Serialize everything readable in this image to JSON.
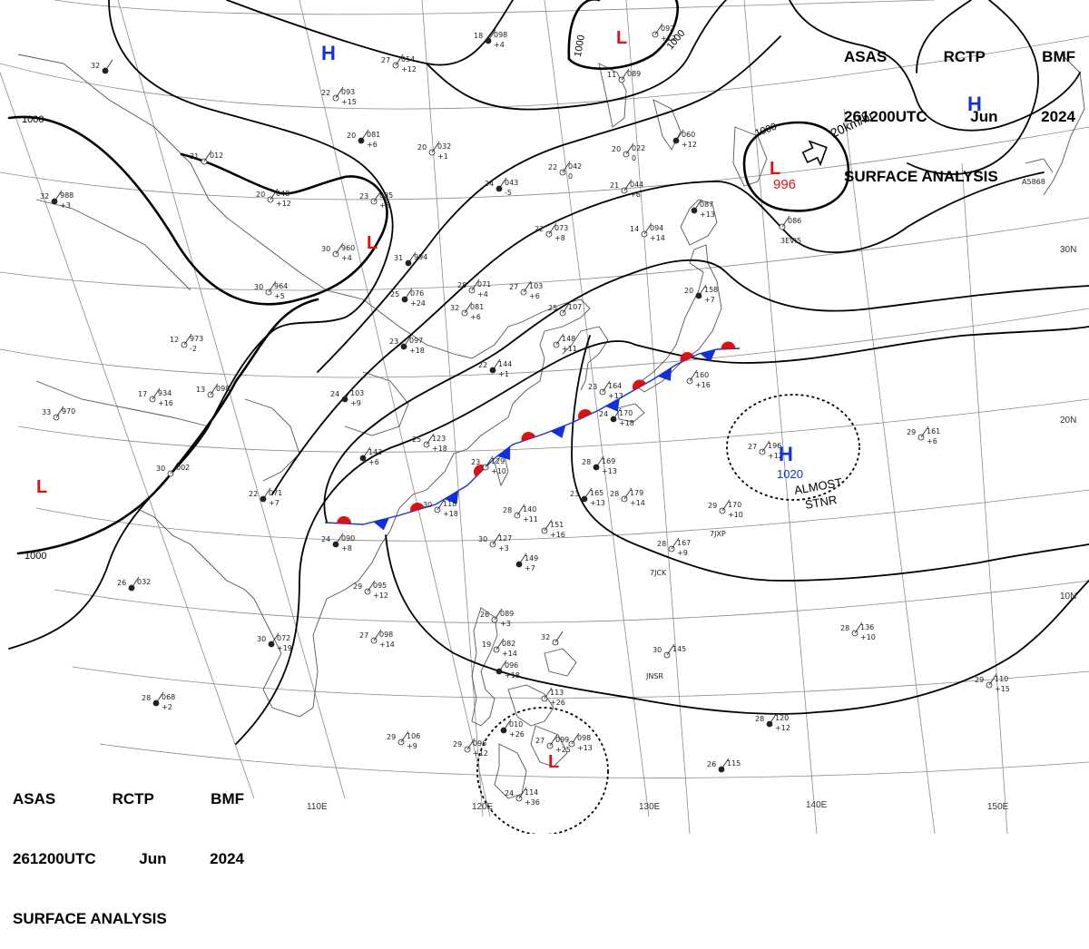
{
  "header": {
    "line1": [
      "ASAS",
      "RCTP",
      "BMF"
    ],
    "line2": [
      "261200UTC",
      "Jun",
      "2024"
    ],
    "line3": "SURFACE ANALYSIS"
  },
  "colors": {
    "high": "#1030e0",
    "low": "#e01010",
    "front_warm": "#e01010",
    "front_cold": "#1030e0",
    "isobar": "#000000",
    "land": "#555555"
  },
  "pressure_centers": [
    {
      "type": "H",
      "value": ""
    },
    {
      "type": "H",
      "value": ""
    },
    {
      "type": "L",
      "value": ""
    },
    {
      "type": "L",
      "value": "996"
    },
    {
      "type": "L",
      "value": ""
    },
    {
      "type": "L",
      "value": ""
    },
    {
      "type": "H",
      "value": "1020"
    },
    {
      "type": "L",
      "value": ""
    }
  ],
  "isobar_labels": [
    "1000",
    "1000",
    "1000",
    "1000",
    "1000"
  ],
  "motion": {
    "speed": "20km/hr",
    "icon": "arrow-right-outline-icon"
  },
  "stationary_note": [
    "ALMOST",
    "STNR"
  ],
  "lon_labels": [
    "110E",
    "120E",
    "130E",
    "140E",
    "150E"
  ],
  "lat_labels": [
    "30N",
    "20N",
    "10N"
  ],
  "ships": [
    "3EVI5",
    "7JXP",
    "7JCK",
    "JNSR",
    "A5868"
  ],
  "station_plots": [
    {
      "t": "18",
      "p": "098",
      "d": "+4"
    },
    {
      "t": "",
      "p": "092",
      "d": "+12"
    },
    {
      "t": "11",
      "p": "089",
      "d": ""
    },
    {
      "t": "32",
      "p": "",
      "d": ""
    },
    {
      "t": "27",
      "p": "054",
      "d": "+12"
    },
    {
      "t": "22",
      "p": "093",
      "d": "+15"
    },
    {
      "t": "20",
      "p": "081",
      "d": "+6"
    },
    {
      "t": "20",
      "p": "032",
      "d": "+1"
    },
    {
      "t": "31",
      "p": "012",
      "d": ""
    },
    {
      "t": "32",
      "p": "988",
      "d": "+3"
    },
    {
      "t": "20",
      "p": "048",
      "d": "+12"
    },
    {
      "t": "23",
      "p": "035",
      "d": "+3"
    },
    {
      "t": "24",
      "p": "043",
      "d": "-5"
    },
    {
      "t": "22",
      "p": "042",
      "d": "0"
    },
    {
      "t": "20",
      "p": "022",
      "d": "0"
    },
    {
      "t": "",
      "p": "060",
      "d": "+12"
    },
    {
      "t": "21",
      "p": "044",
      "d": "+6"
    },
    {
      "t": "30",
      "p": "960",
      "d": "+4"
    },
    {
      "t": "31",
      "p": "994",
      "d": ""
    },
    {
      "t": "22",
      "p": "073",
      "d": "+8"
    },
    {
      "t": "14",
      "p": "094",
      "d": "+14"
    },
    {
      "t": "",
      "p": "087",
      "d": "+13"
    },
    {
      "t": "",
      "p": "086",
      "d": ""
    },
    {
      "t": "30",
      "p": "964",
      "d": "+5"
    },
    {
      "t": "25",
      "p": "076",
      "d": "+24"
    },
    {
      "t": "28",
      "p": "071",
      "d": "+4"
    },
    {
      "t": "27",
      "p": "103",
      "d": "+6"
    },
    {
      "t": "20",
      "p": "158",
      "d": "+7"
    },
    {
      "t": "32",
      "p": "081",
      "d": "+6"
    },
    {
      "t": "25",
      "p": "107",
      "d": ""
    },
    {
      "t": "23",
      "p": "097",
      "d": "+18"
    },
    {
      "t": "12",
      "p": "973",
      "d": "-2"
    },
    {
      "t": "",
      "p": "148",
      "d": "+11"
    },
    {
      "t": "22",
      "p": "144",
      "d": "+1"
    },
    {
      "t": "17",
      "p": "934",
      "d": "+16"
    },
    {
      "t": "13",
      "p": "098",
      "d": ""
    },
    {
      "t": "24",
      "p": "103",
      "d": "+9"
    },
    {
      "t": "33",
      "p": "970",
      "d": ""
    },
    {
      "t": "23",
      "p": "164",
      "d": "+13"
    },
    {
      "t": "24",
      "p": "170",
      "d": "+18"
    },
    {
      "t": "",
      "p": "160",
      "d": "+16"
    },
    {
      "t": "25",
      "p": "123",
      "d": "+18"
    },
    {
      "t": "",
      "p": "143",
      "d": "+6"
    },
    {
      "t": "23",
      "p": "129",
      "d": "+10"
    },
    {
      "t": "30",
      "p": "002",
      "d": ""
    },
    {
      "t": "28",
      "p": "169",
      "d": "+13"
    },
    {
      "t": "27",
      "p": "196",
      "d": "+12"
    },
    {
      "t": "29",
      "p": "161",
      "d": "+6"
    },
    {
      "t": "22",
      "p": "071",
      "d": "+7"
    },
    {
      "t": "30",
      "p": "118",
      "d": "+18"
    },
    {
      "t": "28",
      "p": "140",
      "d": "+11"
    },
    {
      "t": "23",
      "p": "165",
      "d": "+13"
    },
    {
      "t": "28",
      "p": "179",
      "d": "+14"
    },
    {
      "t": "29",
      "p": "170",
      "d": "+10"
    },
    {
      "t": "24",
      "p": "090",
      "d": "+8"
    },
    {
      "t": "30",
      "p": "127",
      "d": "+3"
    },
    {
      "t": "",
      "p": "151",
      "d": "+16"
    },
    {
      "t": "",
      "p": "149",
      "d": "+7"
    },
    {
      "t": "28",
      "p": "167",
      "d": "+9"
    },
    {
      "t": "29",
      "p": "095",
      "d": "+12"
    },
    {
      "t": "26",
      "p": "032",
      "d": ""
    },
    {
      "t": "26",
      "p": "089",
      "d": "+3"
    },
    {
      "t": "27",
      "p": "098",
      "d": "+14"
    },
    {
      "t": "30",
      "p": "072",
      "d": "+19"
    },
    {
      "t": "19",
      "p": "082",
      "d": "+14"
    },
    {
      "t": "32",
      "p": "",
      "d": ""
    },
    {
      "t": "",
      "p": "096",
      "d": "+18"
    },
    {
      "t": "30",
      "p": "145",
      "d": ""
    },
    {
      "t": "28",
      "p": "136",
      "d": "+10"
    },
    {
      "t": "28",
      "p": "068",
      "d": "+2"
    },
    {
      "t": "",
      "p": "113",
      "d": "+26"
    },
    {
      "t": "29",
      "p": "110",
      "d": "+15"
    },
    {
      "t": "28",
      "p": "120",
      "d": "+12"
    },
    {
      "t": "29",
      "p": "106",
      "d": "+9"
    },
    {
      "t": "29",
      "p": "096",
      "d": "+12"
    },
    {
      "t": "",
      "p": "010",
      "d": "+26"
    },
    {
      "t": "27",
      "p": "099",
      "d": "+25"
    },
    {
      "t": "",
      "p": "098",
      "d": "+13"
    },
    {
      "t": "26",
      "p": "115",
      "d": ""
    },
    {
      "t": "24",
      "p": "114",
      "d": "+36"
    }
  ]
}
